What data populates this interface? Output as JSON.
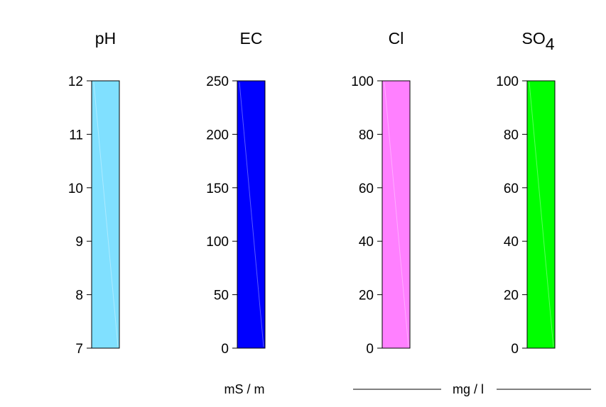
{
  "chart_data": {
    "type": "bar",
    "panels": [
      {
        "title": "pH",
        "title_subscript": "",
        "ylim": [
          7,
          12
        ],
        "ticks": [
          7,
          8,
          9,
          10,
          11,
          12
        ],
        "tick_labels": [
          "7",
          "8",
          "9",
          "10",
          "11",
          "12"
        ],
        "range": [
          7,
          12
        ],
        "color": "#80E0FF"
      },
      {
        "title": "EC",
        "title_subscript": "",
        "ylim": [
          0,
          250
        ],
        "ticks": [
          0,
          50,
          100,
          150,
          200,
          250
        ],
        "tick_labels": [
          "0",
          "50",
          "100",
          "150",
          "200",
          "250"
        ],
        "range": [
          0,
          250
        ],
        "color": "#0000FF"
      },
      {
        "title": "Cl",
        "title_subscript": "",
        "ylim": [
          0,
          100
        ],
        "ticks": [
          0,
          20,
          40,
          60,
          80,
          100
        ],
        "tick_labels": [
          "0",
          "20",
          "40",
          "60",
          "80",
          "100"
        ],
        "range": [
          0,
          100
        ],
        "color": "#FF80FF"
      },
      {
        "title": "SO",
        "title_subscript": "4",
        "ylim": [
          0,
          100
        ],
        "ticks": [
          0,
          20,
          40,
          60,
          80,
          100
        ],
        "tick_labels": [
          "0",
          "20",
          "40",
          "60",
          "80",
          "100"
        ],
        "range": [
          0,
          100
        ],
        "color": "#00FF00"
      }
    ],
    "units": {
      "ec": "mS / m",
      "concentration": "mg / l"
    },
    "grid": false,
    "legend": "none"
  }
}
